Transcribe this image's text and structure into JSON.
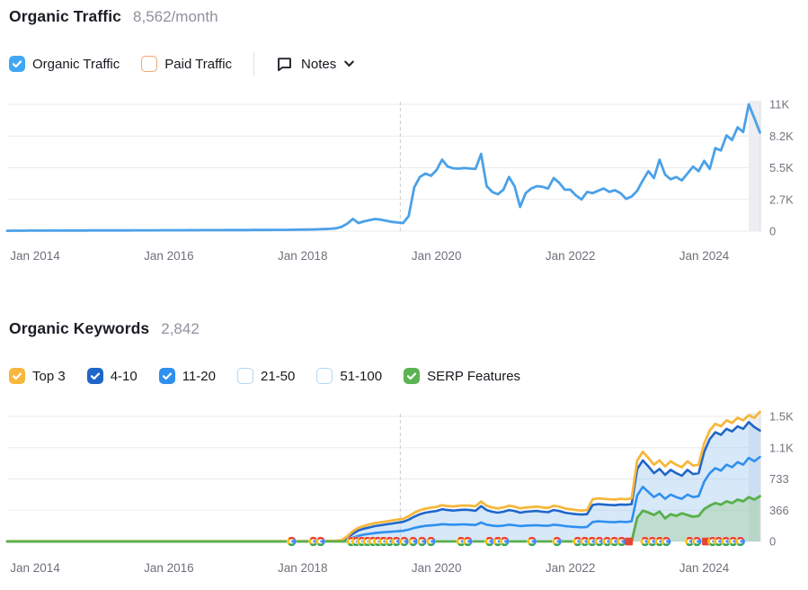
{
  "traffic_section": {
    "title": "Organic Traffic",
    "metric": "8,562/month",
    "legend": [
      {
        "label": "Organic Traffic",
        "checked": true,
        "color": "#42a7f2"
      },
      {
        "label": "Paid Traffic",
        "checked": false,
        "color": "#f2a470"
      }
    ],
    "notes_label": "Notes"
  },
  "keywords_section": {
    "title": "Organic Keywords",
    "metric": "2,842",
    "legend": [
      {
        "label": "Top 3",
        "checked": true,
        "color": "#f6b73c"
      },
      {
        "label": "4-10",
        "checked": true,
        "color": "#1f66c9"
      },
      {
        "label": "11-20",
        "checked": true,
        "color": "#2e90ef"
      },
      {
        "label": "21-50",
        "checked": false,
        "color": "#aed7f3"
      },
      {
        "label": "51-100",
        "checked": false,
        "color": "#aed7f3"
      },
      {
        "label": "SERP Features",
        "checked": true,
        "color": "#5cb353"
      }
    ]
  },
  "chart_data": [
    {
      "type": "line",
      "title": "Organic Traffic trend",
      "interval": "monthly",
      "x_start": "Aug 2013",
      "x_end": "Nov 2024",
      "x_ticks": [
        "Jan 2014",
        "Jan 2016",
        "Jan 2018",
        "Jan 2020",
        "Jan 2022",
        "Jan 2024"
      ],
      "x_tick_indices": [
        5,
        29,
        53,
        77,
        101,
        125
      ],
      "y_ticks": [
        "0",
        "2.7K",
        "5.5K",
        "8.2K",
        "11K"
      ],
      "y_gridlines": [
        0,
        2750,
        5500,
        8250,
        11000
      ],
      "ylim": [
        0,
        11000
      ],
      "grid": true,
      "legend_position": "none",
      "dashed_line_index": 70.5,
      "current_period_highlight": true,
      "series": [
        {
          "name": "Organic Traffic",
          "color": "#4ba1e8",
          "width": 2.8,
          "values": [
            35,
            37,
            39,
            41,
            43,
            45,
            47,
            49,
            51,
            50,
            53,
            55,
            56,
            54,
            57,
            59,
            61,
            60,
            62,
            61,
            64,
            66,
            65,
            68,
            70,
            69,
            72,
            74,
            76,
            75,
            78,
            76,
            80,
            82,
            81,
            84,
            86,
            85,
            88,
            91,
            93,
            92,
            95,
            97,
            99,
            103,
            101,
            105,
            109,
            107,
            111,
            116,
            122,
            130,
            140,
            152,
            165,
            180,
            205,
            250,
            380,
            650,
            1060,
            700,
            850,
            950,
            1050,
            1000,
            900,
            800,
            750,
            700,
            1300,
            3800,
            4700,
            5000,
            4800,
            5300,
            6200,
            5600,
            5450,
            5420,
            5480,
            5430,
            5400,
            6700,
            3900,
            3400,
            3200,
            3600,
            4700,
            3900,
            2100,
            3300,
            3700,
            3900,
            3850,
            3700,
            4600,
            4200,
            3600,
            3600,
            3100,
            2750,
            3400,
            3300,
            3500,
            3700,
            3400,
            3550,
            3300,
            2800,
            3000,
            3500,
            4400,
            5200,
            4600,
            6200,
            4900,
            4500,
            4700,
            4400,
            5000,
            5600,
            5200,
            6100,
            5400,
            7200,
            7000,
            8300,
            7900,
            9000,
            8600,
            11000,
            9800,
            8562
          ]
        }
      ]
    },
    {
      "type": "line",
      "title": "Organic Keywords trend",
      "interval": "monthly",
      "x_start": "Aug 2013",
      "x_end": "Nov 2024",
      "x_ticks": [
        "Jan 2014",
        "Jan 2016",
        "Jan 2018",
        "Jan 2020",
        "Jan 2022",
        "Jan 2024"
      ],
      "x_tick_indices": [
        5,
        29,
        53,
        77,
        101,
        125
      ],
      "y_ticks": [
        "0",
        "366",
        "733",
        "1.1K",
        "1.5K"
      ],
      "y_gridlines": [
        0,
        366.5,
        733,
        1099.5,
        1466
      ],
      "ylim": [
        0,
        1466
      ],
      "grid": true,
      "legend_position": "none",
      "dashed_line_index": 70.5,
      "current_period_highlight": true,
      "series": [
        {
          "name": "11-20",
          "color": "#2e90ef",
          "width": 2.6,
          "pad": 53,
          "pad_value": 1,
          "values": [
            1,
            1,
            2,
            2,
            2,
            3,
            4,
            8,
            20,
            45,
            65,
            80,
            90,
            98,
            104,
            110,
            114,
            119,
            124,
            138,
            158,
            172,
            182,
            188,
            193,
            203,
            198,
            196,
            198,
            200,
            196,
            193,
            222,
            196,
            186,
            180,
            186,
            196,
            190,
            180,
            186,
            188,
            190,
            186,
            183,
            196,
            190,
            180,
            174,
            170,
            166,
            170,
            228,
            236,
            232,
            228,
            226,
            232,
            228,
            236,
            540,
            640,
            580,
            520,
            560,
            500,
            550,
            520,
            500,
            550,
            520,
            530,
            700,
            800,
            860,
            830,
            900,
            870,
            930,
            900,
            980,
            940,
            990
          ]
        },
        {
          "name": "4-10",
          "color": "#1f66c9",
          "width": 2.6,
          "pad": 53,
          "pad_value": 1,
          "fill": "rgba(160,200,240,0.42)",
          "values": [
            2,
            2,
            2,
            3,
            3,
            4,
            5,
            10,
            40,
            90,
            130,
            150,
            165,
            180,
            190,
            200,
            210,
            220,
            230,
            255,
            290,
            318,
            338,
            348,
            358,
            378,
            368,
            362,
            368,
            372,
            368,
            360,
            415,
            368,
            348,
            338,
            348,
            368,
            358,
            338,
            348,
            353,
            358,
            348,
            343,
            368,
            358,
            338,
            328,
            320,
            315,
            320,
            428,
            438,
            433,
            428,
            425,
            433,
            430,
            438,
            850,
            950,
            880,
            800,
            850,
            780,
            840,
            800,
            770,
            840,
            790,
            800,
            1050,
            1200,
            1280,
            1250,
            1320,
            1290,
            1350,
            1320,
            1400,
            1340,
            1300
          ]
        },
        {
          "name": "Top 3",
          "color": "#f6b73c",
          "width": 2.8,
          "pad": 53,
          "pad_value": 2,
          "values": [
            3,
            3,
            4,
            4,
            5,
            6,
            8,
            15,
            60,
            120,
            160,
            180,
            200,
            215,
            225,
            235,
            245,
            255,
            265,
            295,
            335,
            365,
            385,
            395,
            405,
            425,
            415,
            410,
            418,
            422,
            418,
            412,
            468,
            418,
            398,
            388,
            398,
            418,
            408,
            388,
            398,
            403,
            408,
            398,
            393,
            418,
            408,
            388,
            378,
            368,
            362,
            368,
            495,
            505,
            500,
            495,
            490,
            500,
            495,
            505,
            950,
            1050,
            980,
            900,
            950,
            880,
            940,
            900,
            870,
            940,
            890,
            900,
            1150,
            1300,
            1380,
            1350,
            1420,
            1390,
            1450,
            1420,
            1480,
            1450,
            1520
          ]
        },
        {
          "name": "SERP Features",
          "color": "#58b04a",
          "width": 2.8,
          "pad": 113,
          "pad_value": 0,
          "fill": "rgba(140,200,115,0.32)",
          "values": [
            280,
            360,
            340,
            310,
            350,
            270,
            320,
            300,
            330,
            310,
            290,
            300,
            380,
            420,
            450,
            430,
            470,
            450,
            490,
            470,
            520,
            490,
            530
          ]
        }
      ],
      "markers": [
        {
          "i": 51.0,
          "type": "google"
        },
        {
          "i": 54.9,
          "type": "google"
        },
        {
          "i": 56.2,
          "type": "google"
        },
        {
          "i": 61.7,
          "type": "google"
        },
        {
          "i": 62.6,
          "type": "google"
        },
        {
          "i": 63.6,
          "type": "google"
        },
        {
          "i": 64.6,
          "type": "google"
        },
        {
          "i": 65.6,
          "type": "google"
        },
        {
          "i": 66.5,
          "type": "google"
        },
        {
          "i": 67.5,
          "type": "google"
        },
        {
          "i": 68.6,
          "type": "google"
        },
        {
          "i": 69.8,
          "type": "google"
        },
        {
          "i": 71.2,
          "type": "google"
        },
        {
          "i": 72.8,
          "type": "google"
        },
        {
          "i": 74.4,
          "type": "google"
        },
        {
          "i": 76.0,
          "type": "google"
        },
        {
          "i": 81.4,
          "type": "google"
        },
        {
          "i": 82.6,
          "type": "google"
        },
        {
          "i": 86.5,
          "type": "google"
        },
        {
          "i": 88.0,
          "type": "google"
        },
        {
          "i": 89.2,
          "type": "google"
        },
        {
          "i": 94.1,
          "type": "google"
        },
        {
          "i": 98.6,
          "type": "google"
        },
        {
          "i": 102.3,
          "type": "google"
        },
        {
          "i": 103.6,
          "type": "google"
        },
        {
          "i": 104.9,
          "type": "google"
        },
        {
          "i": 106.2,
          "type": "google"
        },
        {
          "i": 107.6,
          "type": "google"
        },
        {
          "i": 108.9,
          "type": "google"
        },
        {
          "i": 110.2,
          "type": "google"
        },
        {
          "i": 111.5,
          "type": "flag"
        },
        {
          "i": 114.4,
          "type": "google"
        },
        {
          "i": 115.7,
          "type": "google"
        },
        {
          "i": 117.0,
          "type": "google"
        },
        {
          "i": 118.2,
          "type": "google"
        },
        {
          "i": 122.4,
          "type": "google"
        },
        {
          "i": 123.7,
          "type": "google"
        },
        {
          "i": 125.3,
          "type": "flag"
        },
        {
          "i": 126.5,
          "type": "google"
        },
        {
          "i": 127.6,
          "type": "google"
        },
        {
          "i": 128.9,
          "type": "google"
        },
        {
          "i": 130.2,
          "type": "google"
        },
        {
          "i": 131.5,
          "type": "google"
        }
      ]
    }
  ]
}
